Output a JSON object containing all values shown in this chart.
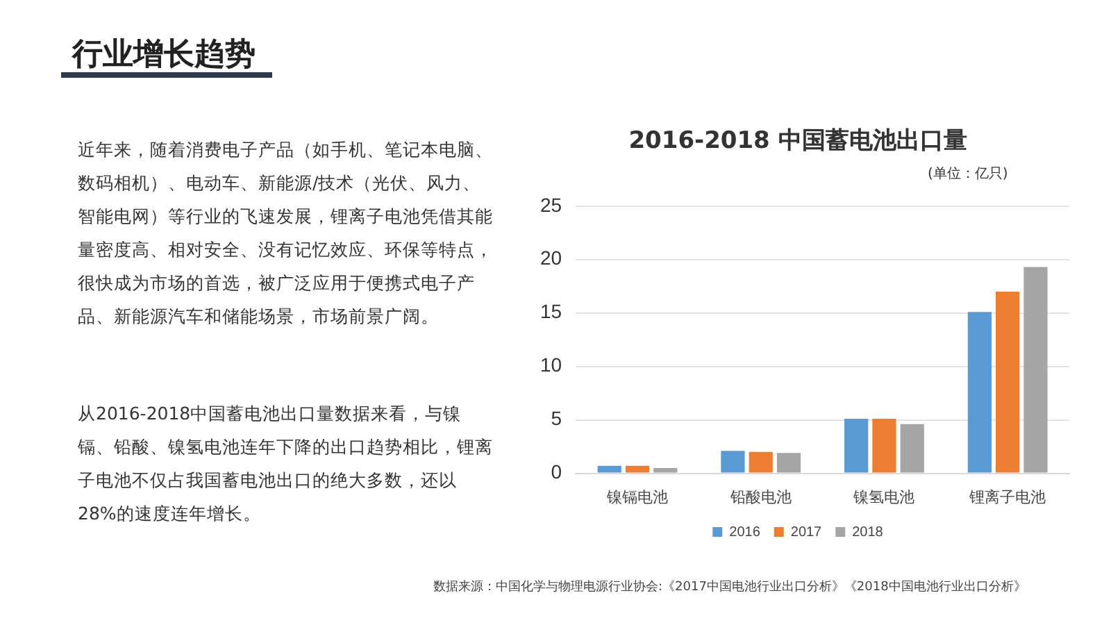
{
  "chart_data": {
    "type": "bar",
    "title": "2016-2018 中国蓄电池出口量",
    "categories": [
      "镍镉电池",
      "铅酸电池",
      "镍氢电池",
      "锂离子电池"
    ],
    "series": [
      {
        "name": "2016",
        "color": "#5b9bd5",
        "values": [
          0.7,
          2.1,
          5.1,
          15.1
        ]
      },
      {
        "name": "2017",
        "color": "#ed7d31",
        "values": [
          0.7,
          2.0,
          5.1,
          17.0
        ]
      },
      {
        "name": "2018",
        "color": "#a5a5a5",
        "values": [
          0.5,
          1.9,
          4.6,
          19.3
        ]
      }
    ],
    "ylim": [
      0,
      25
    ],
    "yticks": [
      0,
      5,
      10,
      15,
      20,
      25
    ],
    "grid": "y",
    "legend": "bottom",
    "annotations": [
      "行业增长趋势",
      "近年来，随着消费电子产品（如手机、笔记本电脑、数码相机）、电动车、新能源/技术（光伏、风力、智能电网）等行业的飞速发展，锂离子电池凭借其能量密度高、相对安全、没有记忆效应、环保等特点，很快成为市场的首选，被广泛应用于便携式电子产品、新能源汽车和储能场景，市场前景广阔。",
      "从2016-2018中国蓄电池出口量数据来看，与镍镉、铅酸、镍氢电池连年下降的出口趋势相比，锂离子电池不仅占我国蓄电池出口的绝大多数，还以28%的速度连年增长。",
      "(单位：亿只)",
      "数据来源：中国化学与物理电源行业协会:《2017中国电池行业出口分析》《2018中国电池行业出口分析》"
    ]
  }
}
